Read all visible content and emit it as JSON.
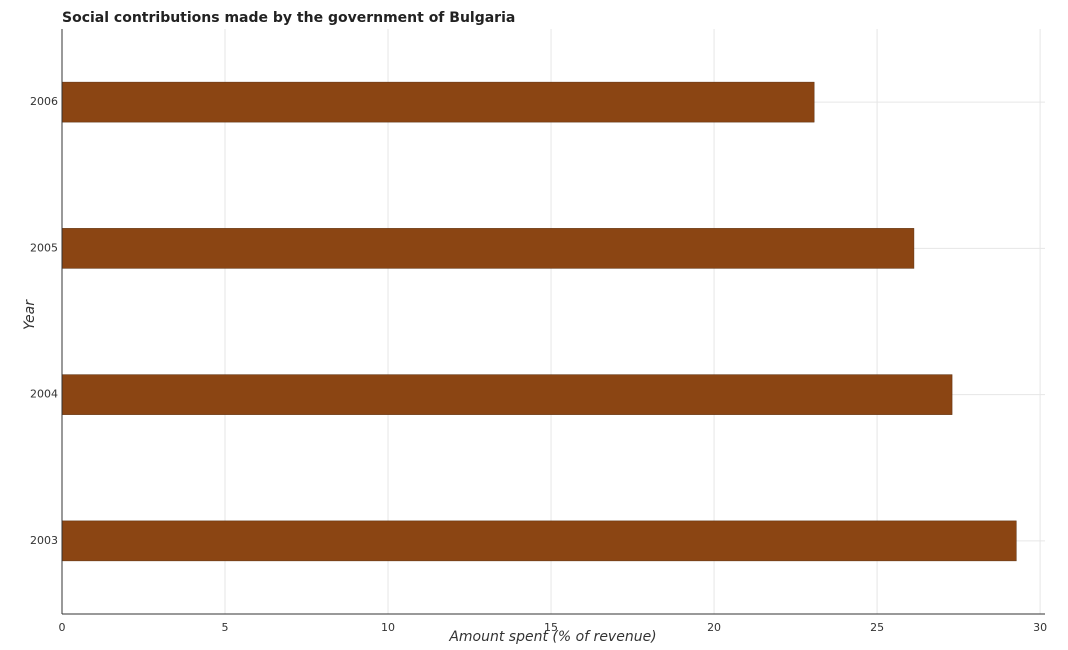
{
  "chart_data": {
    "type": "barh",
    "title": "Social contributions made by the government of Bulgaria",
    "x_label": "Amount spent (% of revenue)",
    "y_label": "Year",
    "categories": [
      "2003",
      "2004",
      "2005",
      "2006"
    ],
    "values": [
      29.27,
      27.3,
      26.13,
      23.07
    ],
    "color": "#8b4513",
    "xlim": [
      0,
      30.15
    ],
    "xticks": [
      0,
      5,
      10,
      15,
      20,
      25,
      30
    ],
    "grid": true
  }
}
